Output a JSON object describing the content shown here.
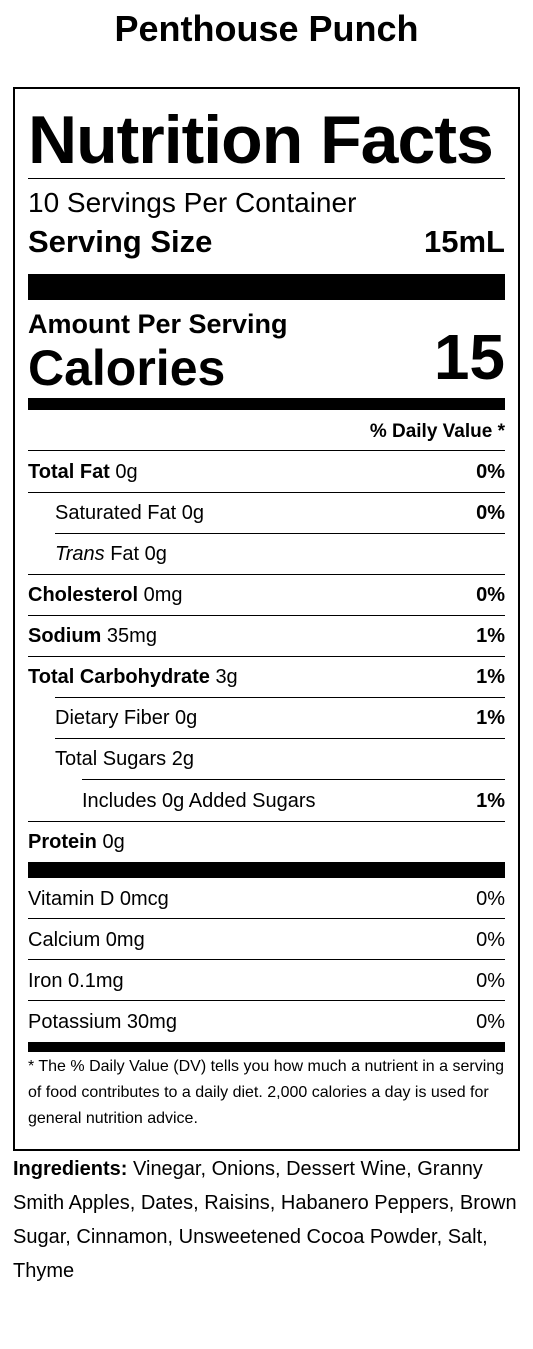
{
  "product_name": "Penthouse Punch",
  "label": {
    "title": "Nutrition Facts",
    "servings_per_container": "10 Servings Per Container",
    "serving_size_label": "Serving Size",
    "serving_size_value": "15mL",
    "amount_per_serving": "Amount Per Serving",
    "calories_label": "Calories",
    "calories_value": "15",
    "daily_value_header": "% Daily Value *",
    "nutrients": [
      {
        "name": "Total Fat",
        "amount": "0g",
        "dv": "0%"
      },
      {
        "name": "Saturated Fat",
        "amount": "0g",
        "dv": "0%"
      },
      {
        "name": "Trans",
        "name_suffix": "Fat",
        "amount": "0g",
        "dv": ""
      },
      {
        "name": "Cholesterol",
        "amount": "0mg",
        "dv": "0%"
      },
      {
        "name": "Sodium",
        "amount": "35mg",
        "dv": "1%"
      },
      {
        "name": "Total Carbohydrate",
        "amount": "3g",
        "dv": "1%"
      },
      {
        "name": "Dietary Fiber",
        "amount": "0g",
        "dv": "1%"
      },
      {
        "name": "Total Sugars",
        "amount": "2g",
        "dv": ""
      },
      {
        "name": "Includes 0g Added Sugars",
        "amount": "",
        "dv": "1%"
      },
      {
        "name": "Protein",
        "amount": "0g",
        "dv": ""
      }
    ],
    "vitamins": [
      {
        "text": "Vitamin D 0mcg",
        "dv": "0%"
      },
      {
        "text": "Calcium 0mg",
        "dv": "0%"
      },
      {
        "text": "Iron 0.1mg",
        "dv": "0%"
      },
      {
        "text": "Potassium 30mg",
        "dv": "0%"
      }
    ],
    "footnote": "* The % Daily Value (DV) tells you how much a nutrient in a serving of food contributes to a daily diet. 2,000 calories a day is used for general nutrition advice."
  },
  "ingredients": {
    "label": "Ingredients:",
    "text": "Vinegar, Onions, Dessert Wine, Granny Smith Apples, Dates, Raisins, Habanero Peppers, Brown Sugar, Cinnamon, Unsweetened Cocoa Powder, Salt, Thyme"
  }
}
